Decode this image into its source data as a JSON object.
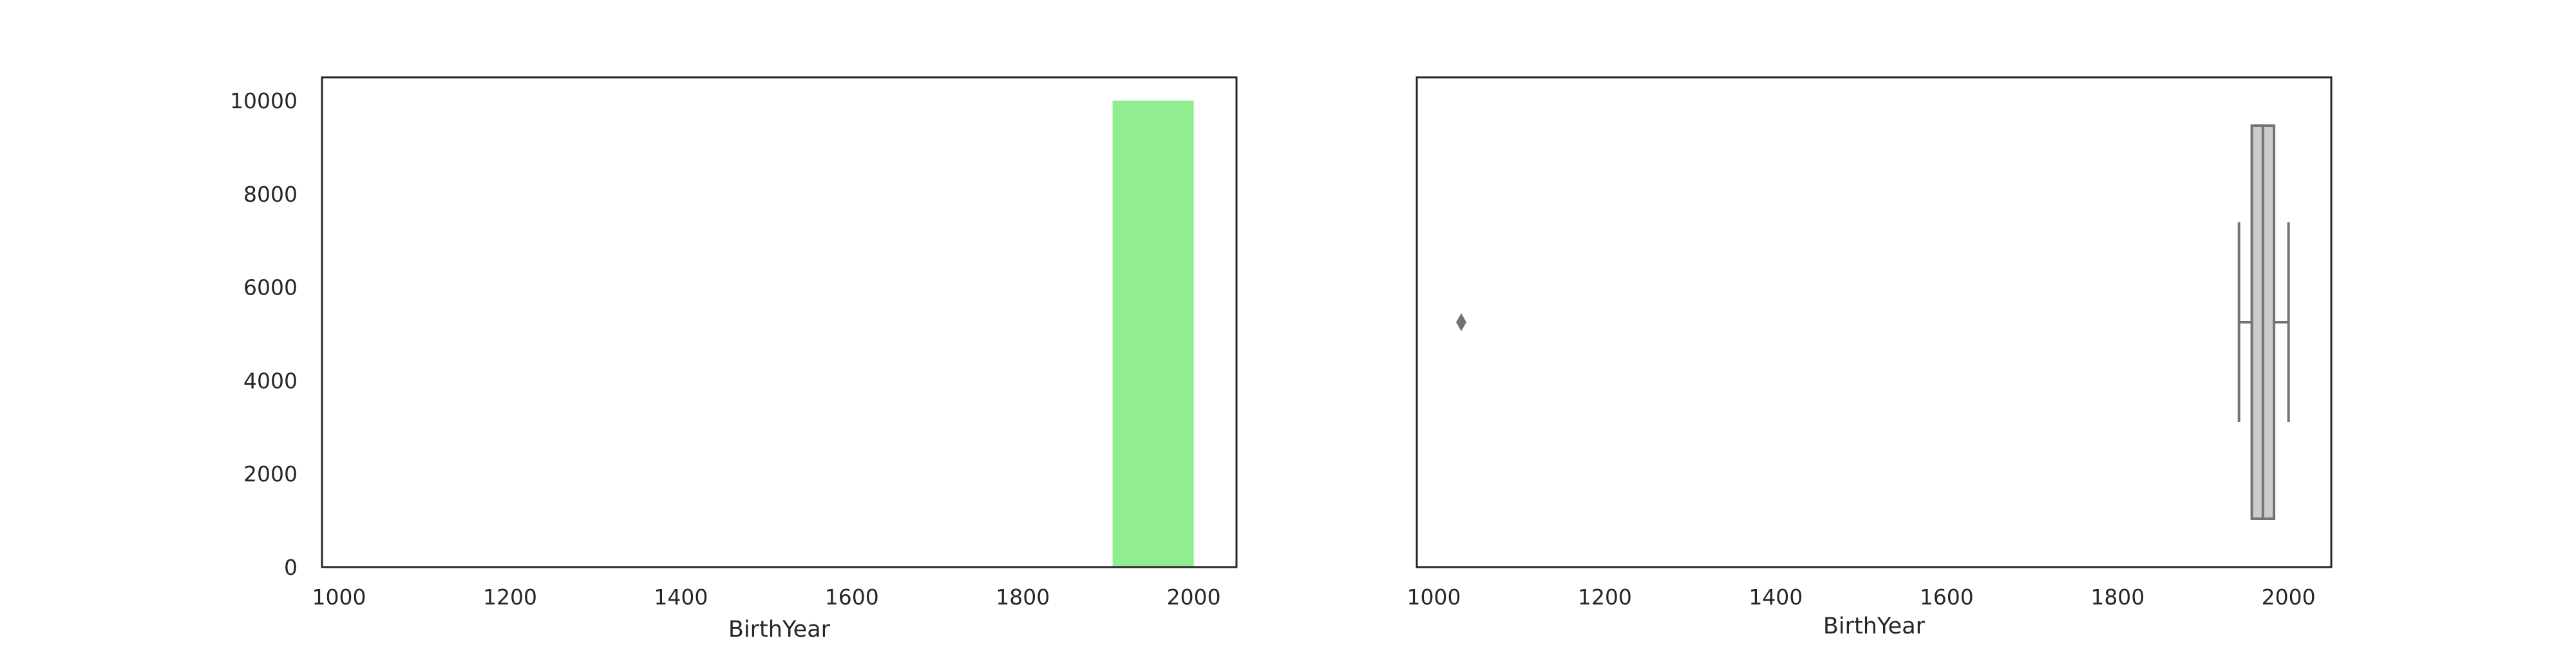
{
  "chart_data": [
    {
      "type": "bar",
      "subtype": "histogram",
      "title": "",
      "xlabel": "BirthYear",
      "ylabel": "",
      "xlim": [
        980,
        2050
      ],
      "ylim": [
        0,
        10500
      ],
      "xticks": [
        1000,
        1200,
        1400,
        1600,
        1800,
        2000
      ],
      "yticks": [
        0,
        2000,
        4000,
        6000,
        8000,
        10000
      ],
      "bins": [
        {
          "x0": 1905,
          "x1": 2000,
          "value": 10000
        }
      ],
      "color": "#90ee90",
      "grid": false,
      "legend": "none"
    },
    {
      "type": "box",
      "title": "",
      "xlabel": "BirthYear",
      "ylabel": "",
      "xlim": [
        980,
        2050
      ],
      "xticks": [
        1000,
        1200,
        1400,
        1600,
        1800,
        2000
      ],
      "box": {
        "whisker_low": 1942,
        "q1": 1957,
        "median": 1970,
        "q3": 1983,
        "whisker_high": 2000,
        "outliers": [
          1032
        ]
      },
      "box_color": "#cccccc",
      "line_color": "#737373",
      "grid": false,
      "legend": "none"
    }
  ]
}
